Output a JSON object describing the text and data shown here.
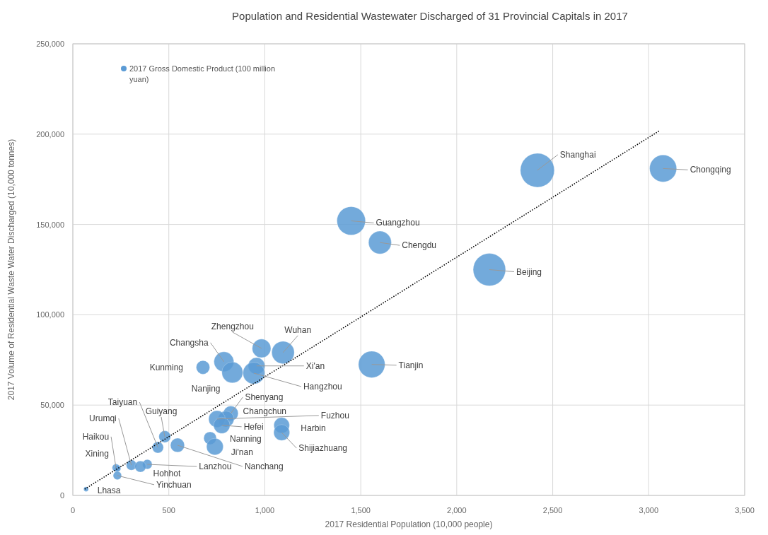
{
  "chart_data": {
    "type": "bubble",
    "title": "Population and Residential Wastewater Discharged of 31 Provincial Capitals in 2017",
    "xlabel": "2017 Residential Population (10,000 people)",
    "ylabel": "2017 Volume of Residential Waste Water Discharged (10,000 tonnes)",
    "xlim": [
      0,
      3500
    ],
    "xticks": [
      0,
      500,
      {
        "value": 1000,
        "label": "1,000"
      },
      {
        "value": 1500,
        "label": "1,500"
      },
      {
        "value": 2000,
        "label": "2,000"
      },
      {
        "value": 2500,
        "label": "2,500"
      },
      {
        "value": 3000,
        "label": "3,000"
      },
      {
        "value": 3500,
        "label": "3,500"
      }
    ],
    "ylim": [
      0,
      250000
    ],
    "yticks": [
      0,
      {
        "value": 50000,
        "label": "50,000"
      },
      {
        "value": 100000,
        "label": "100,000"
      },
      {
        "value": 150000,
        "label": "150,000"
      },
      {
        "value": 200000,
        "label": "200,000"
      },
      {
        "value": 250000,
        "label": "250,000"
      }
    ],
    "grid": true,
    "legend": "top left",
    "series": [
      {
        "name": "2017 Gross Domestic Product (100 million yuan)",
        "color": "#5b9bd5",
        "x": [
          2420,
          3075,
          1450,
          1600,
          2170,
          1557,
          983,
          1095,
          787,
          678,
          831,
          957,
          943,
          823,
          798,
          751,
          776,
          1088,
          1088,
          715,
          740,
          479,
          443,
          388,
          545,
          305,
          352,
          225,
          232,
          232,
          69
        ],
        "values": [
          180000,
          181000,
          152000,
          140000,
          125000,
          72500,
          81400,
          79100,
          74000,
          70900,
          68100,
          71700,
          67700,
          45400,
          42300,
          42300,
          38800,
          38800,
          34800,
          31700,
          27000,
          32500,
          26600,
          17200,
          27800,
          16800,
          16000,
          15300,
          14900,
          11000,
          3500
        ],
        "sizes": [
          1,
          0.63,
          0.7,
          0.45,
          0.91,
          0.61,
          0.3,
          0.44,
          0.34,
          0.16,
          0.38,
          0.24,
          0.41,
          0.19,
          0.22,
          0.24,
          0.23,
          0.21,
          0.22,
          0.14,
          0.24,
          0.12,
          0.11,
          0.08,
          0.17,
          0.09,
          0.11,
          0.05,
          0.04,
          0.06,
          0.02
        ]
      },
      {
        "type": "line",
        "color": "#000000",
        "line_style": "dotted",
        "x": [
          62,
          3058
        ],
        "values": [
          3500,
          202000
        ]
      }
    ],
    "annotations": [
      {
        "text": "Shanghai",
        "x": 2420,
        "y": 180000
      },
      {
        "text": "Chongqing",
        "x": 3075,
        "y": 181000
      },
      {
        "text": "Guangzhou",
        "x": 1450,
        "y": 152000
      },
      {
        "text": "Chengdu",
        "x": 1600,
        "y": 140000
      },
      {
        "text": "Beijing",
        "x": 2170,
        "y": 125000
      },
      {
        "text": "Tianjin",
        "x": 1557,
        "y": 72500
      },
      {
        "text": "Zhengzhou",
        "x": 983,
        "y": 81400
      },
      {
        "text": "Wuhan",
        "x": 1095,
        "y": 79100
      },
      {
        "text": "Changsha",
        "x": 787,
        "y": 74000
      },
      {
        "text": "Kunming",
        "x": 678,
        "y": 70900
      },
      {
        "text": "Nanjing",
        "x": 831,
        "y": 68100
      },
      {
        "text": "Xi'an",
        "x": 957,
        "y": 71700
      },
      {
        "text": "Hangzhou",
        "x": 943,
        "y": 67700
      },
      {
        "text": "Shenyang",
        "x": 823,
        "y": 45400
      },
      {
        "text": "Changchun",
        "x": 798,
        "y": 42300
      },
      {
        "text": "Fuzhou",
        "x": 751,
        "y": 42300
      },
      {
        "text": "Hefei",
        "x": 776,
        "y": 38800
      },
      {
        "text": "Harbin",
        "x": 1088,
        "y": 38800
      },
      {
        "text": "Shijiazhuang",
        "x": 1088,
        "y": 34800
      },
      {
        "text": "Nanning",
        "x": 715,
        "y": 31700
      },
      {
        "text": "Ji'nan",
        "x": 740,
        "y": 27000
      },
      {
        "text": "Guiyang",
        "x": 479,
        "y": 32500
      },
      {
        "text": "Taiyuan",
        "x": 443,
        "y": 26600
      },
      {
        "text": "Lanzhou",
        "x": 388,
        "y": 17200
      },
      {
        "text": "Nanchang",
        "x": 545,
        "y": 27800
      },
      {
        "text": "Urumqi",
        "x": 305,
        "y": 16800
      },
      {
        "text": "Hohhot",
        "x": 352,
        "y": 16000
      },
      {
        "text": "Haikou",
        "x": 225,
        "y": 15300
      },
      {
        "text": "Xining",
        "x": 232,
        "y": 14900
      },
      {
        "text": "Yinchuan",
        "x": 232,
        "y": 11000
      },
      {
        "text": "Lhasa",
        "x": 69,
        "y": 3500
      }
    ]
  }
}
